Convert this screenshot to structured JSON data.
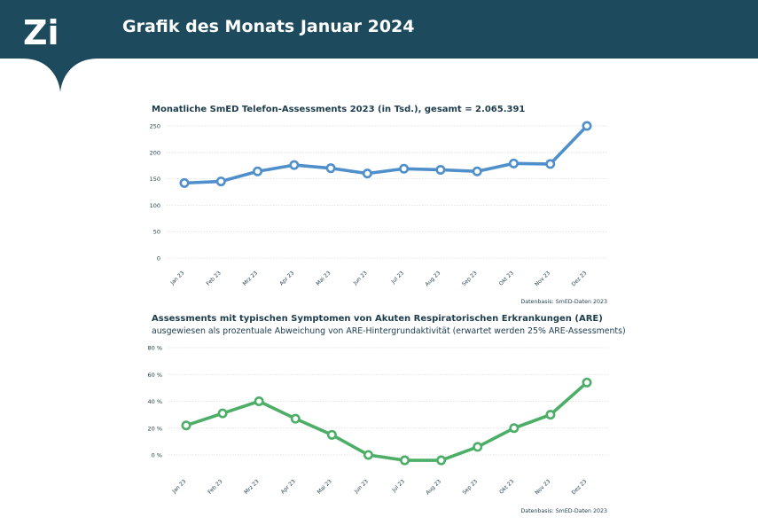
{
  "header": {
    "logo": "Zi",
    "title": "Grafik des Monats Januar 2024",
    "background": "#1d4a5c"
  },
  "chart_data": [
    {
      "type": "line",
      "title": "Monatliche SmED Telefon-Assessments 2023 (in Tsd.), gesamt = 2.065.391",
      "subtitle": "",
      "source": "Datenbasis: SmED-Daten 2023",
      "color": "#4f8fcb",
      "categories": [
        "Jan 23",
        "Feb 23",
        "Mrz 23",
        "Apr 23",
        "Mai 23",
        "Jun 23",
        "Jul 23",
        "Aug 23",
        "Sep 23",
        "Okt 23",
        "Nov 23",
        "Dez 23"
      ],
      "series": [
        {
          "values": [
            142,
            145,
            164,
            176,
            170,
            160,
            169,
            167,
            164,
            179,
            178,
            250
          ]
        }
      ],
      "yticks": [
        0,
        50,
        100,
        150,
        200,
        250
      ],
      "ytick_suffix": "",
      "ylim": [
        0,
        250
      ],
      "grid": true
    },
    {
      "type": "line",
      "title": "Assessments mit typischen Symptomen von Akuten Respiratorischen Erkrankungen (ARE)",
      "subtitle": "ausgewiesen als prozentuale Abweichung von ARE-Hintergrundaktivität (erwartet werden 25% ARE-Assessments)",
      "source": "Datenbasis: SmED-Daten 2023",
      "color": "#4cae67",
      "categories": [
        "Jan 23",
        "Feb 23",
        "Mrz 23",
        "Apr 23",
        "Mai 23",
        "Jun 23",
        "Jul 23",
        "Aug 23",
        "Sep 23",
        "Okt 23",
        "Nov 23",
        "Dez 23"
      ],
      "series": [
        {
          "values": [
            22,
            31,
            40,
            27,
            15,
            0,
            -4,
            -4,
            6,
            20,
            30,
            54
          ]
        }
      ],
      "yticks": [
        0,
        20,
        40,
        60,
        80
      ],
      "ytick_suffix": " %",
      "ylim": [
        -10,
        80
      ],
      "grid": true
    }
  ]
}
